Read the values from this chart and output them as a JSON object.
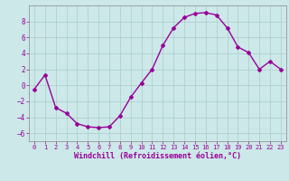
{
  "x": [
    0,
    1,
    2,
    3,
    4,
    5,
    6,
    7,
    8,
    9,
    10,
    11,
    12,
    13,
    14,
    15,
    16,
    17,
    18,
    19,
    20,
    21,
    22,
    23
  ],
  "y": [
    -0.5,
    1.3,
    -2.8,
    -3.5,
    -4.8,
    -5.2,
    -5.3,
    -5.2,
    -3.8,
    -1.5,
    0.3,
    2.0,
    5.0,
    7.2,
    8.5,
    9.0,
    9.1,
    8.8,
    7.2,
    4.8,
    4.1,
    2.0,
    3.0,
    2.0
  ],
  "line_color": "#990099",
  "marker": "D",
  "marker_size": 2,
  "linewidth": 1.0,
  "xlabel": "Windchill (Refroidissement éolien,°C)",
  "xlabel_fontsize": 6,
  "bg_color": "#cce8e8",
  "grid_color": "#aacccc",
  "yticks": [
    -6,
    -4,
    -2,
    0,
    2,
    4,
    6,
    8
  ],
  "xticks": [
    0,
    1,
    2,
    3,
    4,
    5,
    6,
    7,
    8,
    9,
    10,
    11,
    12,
    13,
    14,
    15,
    16,
    17,
    18,
    19,
    20,
    21,
    22,
    23
  ],
  "ylim": [
    -7,
    10
  ],
  "xlim": [
    -0.5,
    23.5
  ]
}
